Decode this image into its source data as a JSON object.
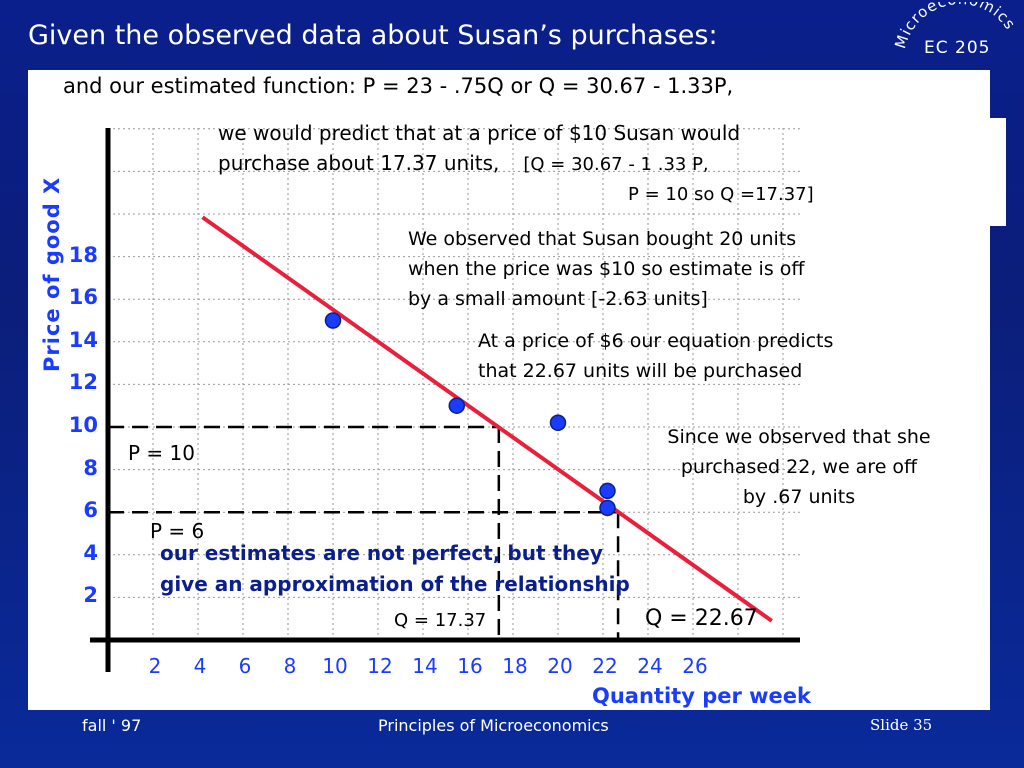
{
  "slide": {
    "title": "Given the observed data about Susan’s purchases:",
    "subtitle": "and our estimated function: P = 23 - .75Q or Q = 30.67 - 1.33P,",
    "logo": {
      "arc_text": "Microeconomics",
      "course": "EC 205"
    }
  },
  "annotations": {
    "predict_line1": "we would predict that at a price of $10 Susan would",
    "predict_line2": "purchase about 17.37 units,",
    "predict_calc1": "[Q = 30.67 - 1 .33 P,",
    "predict_calc2": "P = 10 so Q =17.37]",
    "observed_line1": "We observed that Susan bought 20 units",
    "observed_line2": "when the price was $10 so estimate is off",
    "observed_line3": "by a small amount [-2.63 units]",
    "price6_line1": "At a price of $6 our equation predicts",
    "price6_line2": "that 22.67 units will be purchased",
    "off_line1": "Since we observed that she",
    "off_line2": "purchased 22, we are off",
    "off_line3": "by .67 units",
    "p10_label": "P = 10",
    "p6_label": "P = 6",
    "q1737_label": "Q = 17.37",
    "q2267_label": "Q = 22.67",
    "conclusion_line1": "our estimates are not perfect, but they",
    "conclusion_line2": "give an approximation of the relationship"
  },
  "chart_data": {
    "type": "scatter",
    "xlabel": "Quantity per week",
    "ylabel": "Price of good X",
    "x_ticks": [
      "2",
      "4",
      "6",
      "8",
      "10",
      "12",
      "14",
      "16",
      "18",
      "20",
      "22",
      "24",
      "26"
    ],
    "y_ticks": [
      "18",
      "16",
      "14",
      "12",
      "10",
      "8",
      "6",
      "4",
      "2"
    ],
    "xlim": [
      0,
      30
    ],
    "ylim": [
      0,
      24
    ],
    "grid": true,
    "points": [
      {
        "x": 10,
        "y": 15
      },
      {
        "x": 15.5,
        "y": 11
      },
      {
        "x": 20,
        "y": 10.2
      },
      {
        "x": 22.2,
        "y": 7
      },
      {
        "x": 22.2,
        "y": 6.2
      }
    ],
    "fit_line": {
      "equation": "P = 23 - .75Q",
      "from": [
        4.2,
        19.85
      ],
      "to": [
        29.5,
        0.9
      ]
    },
    "reference_lines": [
      {
        "price": 10,
        "quantity": 17.37
      },
      {
        "price": 6,
        "quantity": 22.67
      }
    ],
    "colors": {
      "line": "#e8203c",
      "point": "#1a3cff",
      "axis": "#000000",
      "tick_text": "#1a3cff"
    }
  },
  "footer": {
    "left": "fall ' 97",
    "center": "Principles of Microeconomics",
    "right": "Slide 35"
  }
}
